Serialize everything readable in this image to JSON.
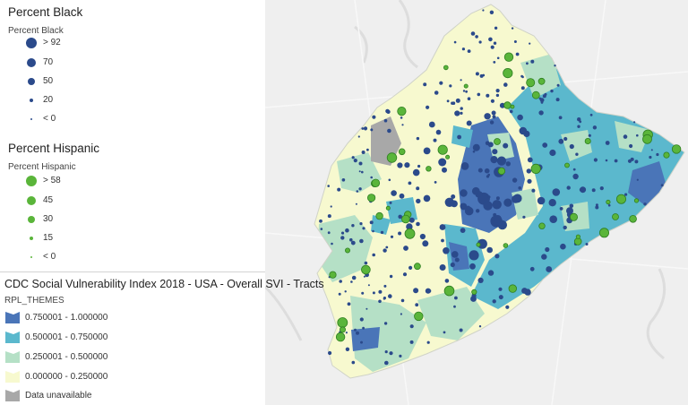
{
  "legend": {
    "black": {
      "title": "Percent Black",
      "subtitle": "Percent Black",
      "color": "#2b4a8b",
      "items": [
        "> 92",
        "70",
        "50",
        "20",
        "< 0"
      ]
    },
    "hispanic": {
      "title": "Percent Hispanic",
      "subtitle": "Percent Hispanic",
      "color": "#5ab53a",
      "items": [
        "> 58",
        "45",
        "30",
        "15",
        "< 0"
      ]
    },
    "svi": {
      "title": "CDC Social Vulnerability Index 2018 - USA - Overall SVI - Tracts",
      "subtitle": "RPL_THEMES",
      "items": [
        {
          "label": "0.750001 - 1.000000",
          "color": "#4a75b8"
        },
        {
          "label": "0.500001 - 0.750000",
          "color": "#5bb8cd"
        },
        {
          "label": "0.250001 - 0.500000",
          "color": "#b5e0c6"
        },
        {
          "label": "0.000000 - 0.250000",
          "color": "#f7f9cf"
        },
        {
          "label": "Data unavailable",
          "color": "#a8a8a8"
        }
      ]
    }
  }
}
